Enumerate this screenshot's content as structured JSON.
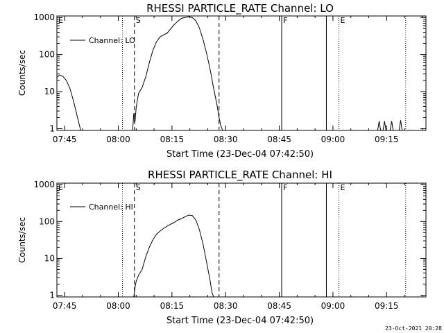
{
  "footer_timestamp": "23-Oct-2021 20:28",
  "chart_data": [
    {
      "type": "line",
      "title": "RHESSI PARTICLE_RATE Channel: LO",
      "xlabel": "Start Time (23-Dec-04 07:42:50)",
      "ylabel": "Counts/sec",
      "y_scale": "log",
      "ylim": [
        0.9,
        1100
      ],
      "xlim": [
        "07:42:50",
        "09:26:00"
      ],
      "x_tick_labels": [
        "07:45",
        "08:00",
        "08:15",
        "08:30",
        "08:45",
        "09:00",
        "09:15"
      ],
      "y_tick_labels": [
        "1",
        "10",
        "100",
        "1000"
      ],
      "legend": {
        "position": "top-left",
        "entries": [
          "Channel: LO"
        ]
      },
      "grid": false,
      "markers": [
        {
          "label": "E",
          "time": "07:42:50",
          "style": "dotted"
        },
        {
          "label": "",
          "time": "08:01:10",
          "style": "dotted"
        },
        {
          "label": "S",
          "time": "08:04:30",
          "style": "dashed"
        },
        {
          "label": "",
          "time": "08:28:10",
          "style": "dashed"
        },
        {
          "label": "F",
          "time": "08:45:40",
          "style": "solid"
        },
        {
          "label": "",
          "time": "08:58:10",
          "style": "solid"
        },
        {
          "label": "E",
          "time": "09:01:40",
          "style": "dotted"
        },
        {
          "label": "",
          "time": "09:20:20",
          "style": "dotted"
        }
      ],
      "series": [
        {
          "name": "Channel: LO",
          "segments": [
            [
              [
                "07:42:50",
                24
              ],
              [
                "07:43:30",
                28
              ],
              [
                "07:44:30",
                26
              ],
              [
                "07:45:30",
                20
              ],
              [
                "07:46:30",
                12
              ],
              [
                "07:47:30",
                5.5
              ],
              [
                "07:48:30",
                2.2
              ],
              [
                "07:49:10",
                1.2
              ],
              [
                "07:49:30",
                0.9
              ]
            ],
            [
              [
                "08:04:00",
                0.9
              ],
              [
                "08:04:20",
                2.6
              ],
              [
                "08:04:40",
                1.5
              ],
              [
                "08:05:00",
                3.8
              ],
              [
                "08:05:40",
                9
              ],
              [
                "08:06:40",
                13
              ],
              [
                "08:07:40",
                25
              ],
              [
                "08:08:40",
                60
              ],
              [
                "08:09:40",
                130
              ],
              [
                "08:10:40",
                220
              ],
              [
                "08:11:40",
                300
              ],
              [
                "08:12:40",
                340
              ],
              [
                "08:13:40",
                380
              ],
              [
                "08:14:40",
                500
              ],
              [
                "08:15:40",
                650
              ],
              [
                "08:16:40",
                800
              ],
              [
                "08:17:40",
                950
              ],
              [
                "08:18:40",
                1000
              ],
              [
                "08:19:40",
                1050
              ],
              [
                "08:20:40",
                1000
              ],
              [
                "08:21:40",
                820
              ],
              [
                "08:22:40",
                520
              ],
              [
                "08:23:40",
                260
              ],
              [
                "08:24:40",
                110
              ],
              [
                "08:25:40",
                40
              ],
              [
                "08:26:40",
                12
              ],
              [
                "08:27:40",
                4
              ],
              [
                "08:28:10",
                2
              ],
              [
                "08:28:40",
                1.2
              ],
              [
                "08:29:10",
                0.9
              ]
            ],
            [
              [
                "09:12:30",
                0.9
              ],
              [
                "09:12:55",
                1.6
              ],
              [
                "09:13:20",
                0.9
              ]
            ],
            [
              [
                "09:14:00",
                0.9
              ],
              [
                "09:14:25",
                1.6
              ],
              [
                "09:14:50",
                0.9
              ]
            ],
            [
              [
                "09:16:00",
                0.9
              ],
              [
                "09:16:25",
                1.6
              ],
              [
                "09:16:50",
                0.9
              ]
            ],
            [
              [
                "09:18:30",
                0.9
              ],
              [
                "09:18:55",
                1.7
              ],
              [
                "09:19:20",
                0.9
              ]
            ]
          ]
        }
      ]
    },
    {
      "type": "line",
      "title": "RHESSI PARTICLE_RATE Channel: HI",
      "xlabel": "Start Time (23-Dec-04 07:42:50)",
      "ylabel": "Counts/sec",
      "y_scale": "log",
      "ylim": [
        0.9,
        1100
      ],
      "xlim": [
        "07:42:50",
        "09:26:00"
      ],
      "x_tick_labels": [
        "07:45",
        "08:00",
        "08:15",
        "08:30",
        "08:45",
        "09:00",
        "09:15"
      ],
      "y_tick_labels": [
        "1",
        "10",
        "100",
        "1000"
      ],
      "legend": {
        "position": "top-left",
        "entries": [
          "Channel: HI"
        ]
      },
      "grid": false,
      "markers": [
        {
          "label": "E",
          "time": "07:42:50",
          "style": "dotted"
        },
        {
          "label": "",
          "time": "08:01:10",
          "style": "dotted"
        },
        {
          "label": "S",
          "time": "08:04:30",
          "style": "dashed"
        },
        {
          "label": "",
          "time": "08:28:10",
          "style": "dashed"
        },
        {
          "label": "F",
          "time": "08:45:40",
          "style": "solid"
        },
        {
          "label": "",
          "time": "08:58:10",
          "style": "solid"
        },
        {
          "label": "E",
          "time": "09:01:40",
          "style": "dotted"
        },
        {
          "label": "",
          "time": "09:20:20",
          "style": "dotted"
        }
      ],
      "series": [
        {
          "name": "Channel: HI",
          "segments": [
            [
              [
                "08:04:20",
                0.9
              ],
              [
                "08:04:40",
                1.6
              ],
              [
                "08:05:00",
                2.4
              ],
              [
                "08:05:40",
                3.5
              ],
              [
                "08:06:40",
                5
              ],
              [
                "08:07:40",
                11
              ],
              [
                "08:08:40",
                20
              ],
              [
                "08:09:40",
                32
              ],
              [
                "08:10:40",
                45
              ],
              [
                "08:11:40",
                55
              ],
              [
                "08:12:40",
                65
              ],
              [
                "08:13:40",
                75
              ],
              [
                "08:14:40",
                85
              ],
              [
                "08:15:40",
                95
              ],
              [
                "08:16:40",
                110
              ],
              [
                "08:17:40",
                120
              ],
              [
                "08:18:40",
                135
              ],
              [
                "08:19:40",
                150
              ],
              [
                "08:20:40",
                145
              ],
              [
                "08:21:40",
                110
              ],
              [
                "08:22:40",
                60
              ],
              [
                "08:23:40",
                25
              ],
              [
                "08:24:40",
                8
              ],
              [
                "08:25:40",
                2.5
              ],
              [
                "08:26:10",
                1.2
              ],
              [
                "08:26:40",
                0.9
              ]
            ]
          ]
        }
      ]
    }
  ]
}
